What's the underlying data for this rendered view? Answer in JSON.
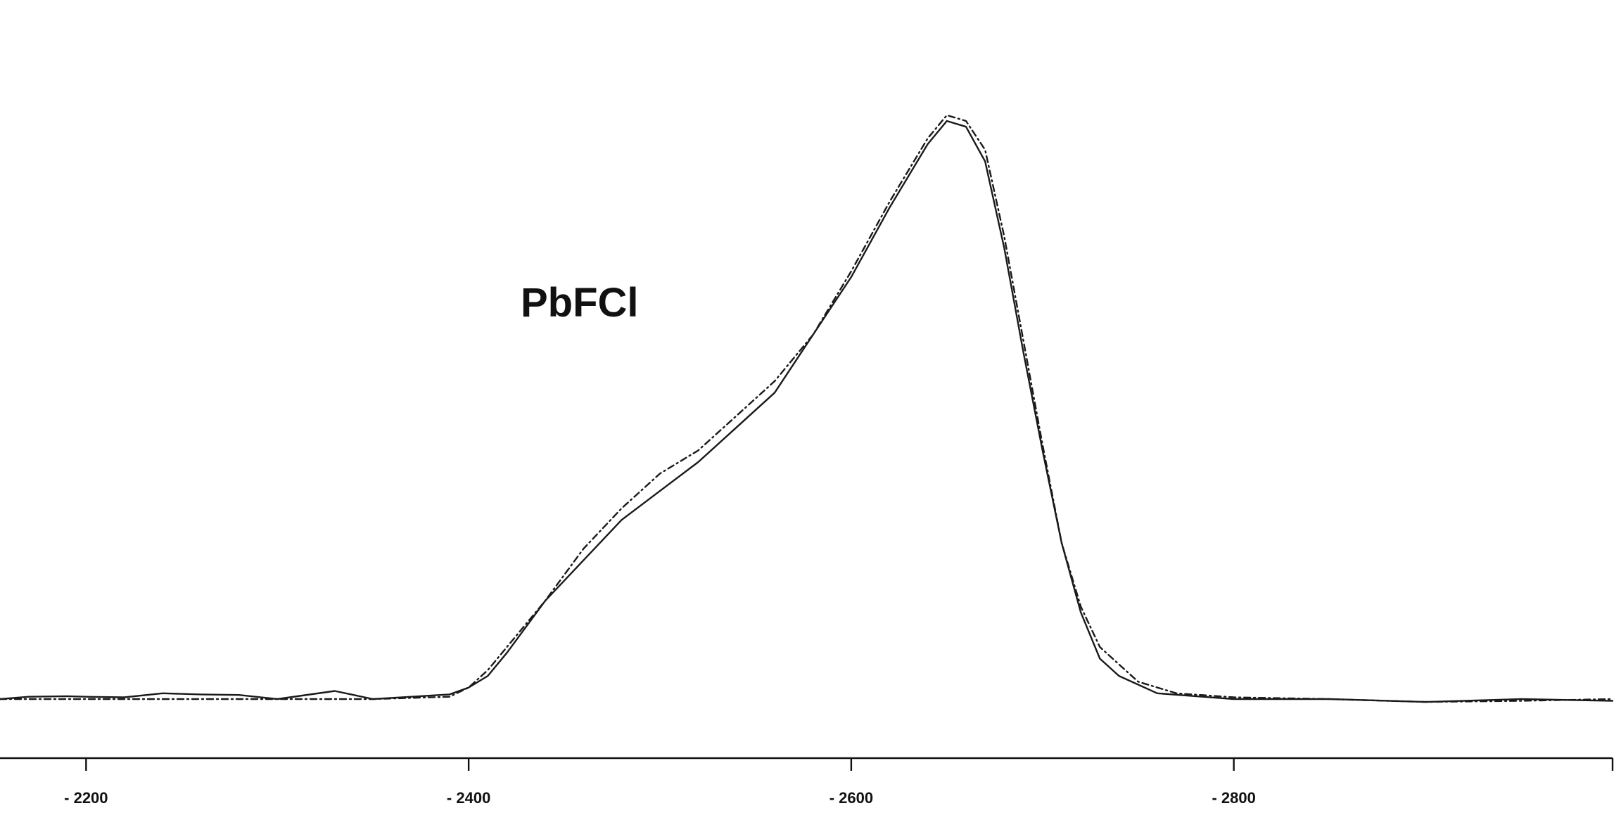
{
  "chart_data": {
    "type": "line",
    "title": "",
    "xlabel": "",
    "ylabel": "",
    "annotation": "PbFCl",
    "xlim": [
      -2155,
      -2998
    ],
    "ylim": [
      0,
      1.05
    ],
    "xticks": [
      -2200,
      -2400,
      -2600,
      -2800,
      -2998
    ],
    "xtick_labels": [
      "- 2200",
      "- 2400",
      "- 2600",
      "- 2800",
      ""
    ],
    "grid": false,
    "series": [
      {
        "style": "solid",
        "x": [
          -2155,
          -2170,
          -2190,
          -2200,
          -2220,
          -2240,
          -2260,
          -2280,
          -2300,
          -2330,
          -2350,
          -2370,
          -2390,
          -2400,
          -2410,
          -2420,
          -2440,
          -2460,
          -2480,
          -2500,
          -2520,
          -2540,
          -2560,
          -2580,
          -2600,
          -2620,
          -2640,
          -2650,
          -2660,
          -2670,
          -2680,
          -2690,
          -2700,
          -2710,
          -2720,
          -2730,
          -2740,
          -2760,
          -2780,
          -2800,
          -2850,
          -2900,
          -2950,
          -2998
        ],
        "y": [
          0.0,
          0.004,
          0.005,
          0.004,
          0.003,
          0.01,
          0.008,
          0.007,
          0.0,
          0.014,
          0.0,
          0.004,
          0.008,
          0.02,
          0.04,
          0.08,
          0.17,
          0.24,
          0.31,
          0.36,
          0.41,
          0.47,
          0.53,
          0.63,
          0.73,
          0.85,
          0.96,
          1.0,
          0.99,
          0.93,
          0.78,
          0.6,
          0.43,
          0.27,
          0.15,
          0.07,
          0.04,
          0.01,
          0.005,
          0.0,
          0.0,
          -0.005,
          0.0,
          -0.003
        ]
      },
      {
        "style": "dashed",
        "x": [
          -2155,
          -2200,
          -2250,
          -2300,
          -2350,
          -2390,
          -2400,
          -2410,
          -2420,
          -2440,
          -2460,
          -2480,
          -2500,
          -2520,
          -2540,
          -2560,
          -2580,
          -2600,
          -2620,
          -2640,
          -2650,
          -2660,
          -2670,
          -2680,
          -2690,
          -2700,
          -2710,
          -2720,
          -2730,
          -2740,
          -2750,
          -2770,
          -2800,
          -2850,
          -2900,
          -2950,
          -2998
        ],
        "y": [
          0.0,
          0.0,
          0.0,
          0.0,
          0.0,
          0.004,
          0.02,
          0.05,
          0.09,
          0.17,
          0.26,
          0.33,
          0.39,
          0.43,
          0.49,
          0.55,
          0.63,
          0.74,
          0.86,
          0.97,
          1.01,
          1.0,
          0.95,
          0.8,
          0.62,
          0.44,
          0.27,
          0.16,
          0.09,
          0.06,
          0.03,
          0.01,
          0.003,
          0.0,
          -0.005,
          -0.003,
          0.0
        ]
      }
    ]
  }
}
